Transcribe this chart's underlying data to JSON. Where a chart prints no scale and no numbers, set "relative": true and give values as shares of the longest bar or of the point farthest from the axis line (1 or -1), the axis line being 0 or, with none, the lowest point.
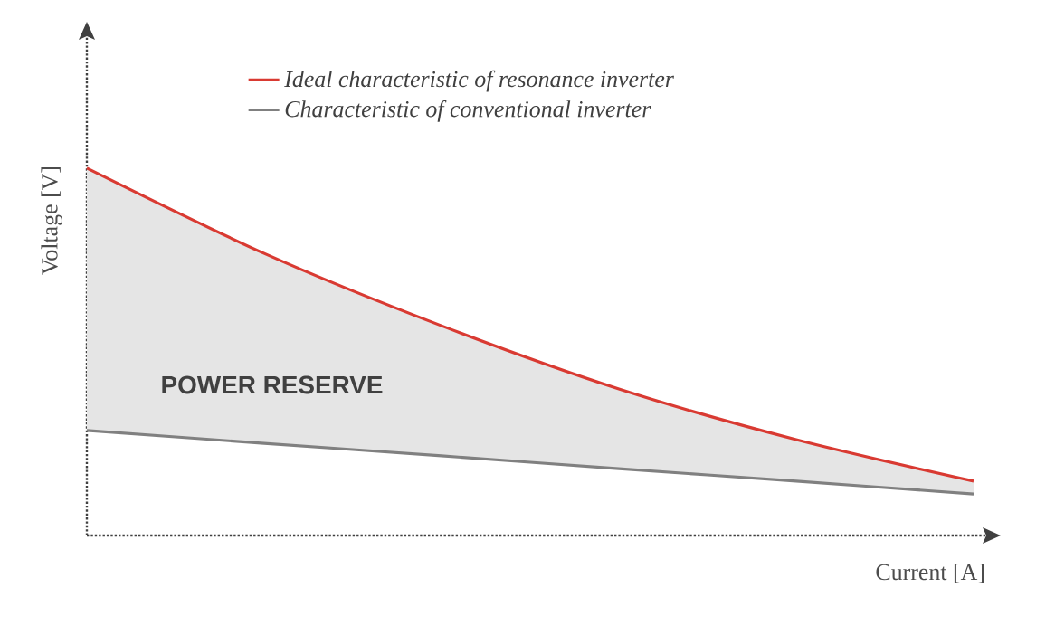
{
  "chart_data": {
    "type": "line",
    "relative": true,
    "xlabel": "Current [A]",
    "ylabel": "Voltage [V]",
    "categories": [
      null,
      null,
      null,
      null,
      null,
      null
    ],
    "series": [
      {
        "name": "Ideal characteristic of resonance inverter",
        "color": "#d93a32",
        "values": [
          1,
          0.768,
          0.571,
          0.399,
          0.261,
          0.148
        ],
        "lower": [
          0.286,
          0.251,
          0.217,
          0.182,
          0.148,
          0.113
        ],
        "upper": [
          1,
          0.768,
          0.571,
          0.399,
          0.261,
          0.148
        ]
      },
      {
        "name": "Characteristic of conventional inverter",
        "color": "#808080",
        "values": [
          0.286,
          0.251,
          0.217,
          0.182,
          0.148,
          0.113
        ]
      }
    ],
    "annotations": [
      "POWER RESERVE"
    ],
    "legend": "top",
    "marker": "none",
    "line_style": "solid"
  }
}
